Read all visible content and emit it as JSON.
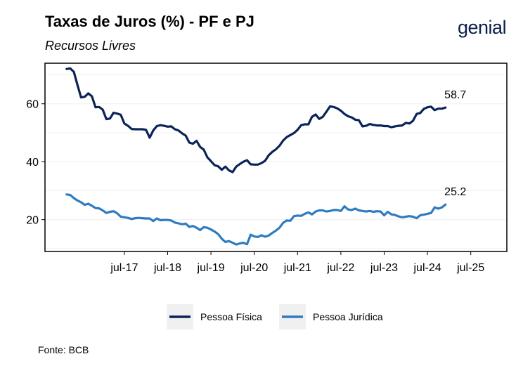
{
  "header": {
    "title": "Taxas de Juros (%) - PF e PJ",
    "subtitle": "Recursos Livres",
    "brand": "genial"
  },
  "footer": {
    "source": "Fonte: BCB"
  },
  "colors": {
    "pessoa_fisica": "#0a2458",
    "pessoa_juridica": "#2e7bc0",
    "grid": "#f0f0f0"
  },
  "chart_data": {
    "type": "line",
    "title": "Taxas de Juros (%) - PF e PJ",
    "subtitle": "Recursos Livres",
    "xlabel": "",
    "ylabel": "",
    "x_start": "2016-03",
    "x_step": "month",
    "xlim_month_index": [
      -6,
      122
    ],
    "ylim": [
      9,
      74
    ],
    "yticks": [
      20,
      40,
      60
    ],
    "xtick_labels": [
      "jul-17",
      "jul-18",
      "jul-19",
      "jul-20",
      "jul-21",
      "jul-22",
      "jul-23",
      "jul-24",
      "jul-25"
    ],
    "xtick_month_index": [
      16,
      28,
      40,
      52,
      64,
      76,
      88,
      100,
      112
    ],
    "grid": true,
    "legend_position": "bottom",
    "series": [
      {
        "name": "Pessoa Física",
        "end_label": "58.7",
        "values": [
          72.0,
          72.2,
          71.0,
          66.5,
          62.2,
          62.4,
          63.6,
          62.6,
          58.8,
          58.9,
          58.0,
          54.7,
          54.9,
          56.9,
          56.6,
          56.2,
          53.2,
          52.4,
          51.3,
          51.2,
          51.2,
          51.2,
          51.0,
          48.3,
          50.8,
          52.3,
          52.6,
          52.4,
          52.1,
          52.2,
          51.2,
          50.8,
          49.8,
          49.0,
          46.6,
          46.2,
          47.2,
          45.1,
          44.2,
          41.5,
          40.2,
          38.8,
          38.4,
          37.2,
          38.3,
          37.0,
          36.4,
          38.3,
          39.2,
          40.0,
          40.5,
          39.1,
          39.0,
          39.0,
          39.5,
          40.3,
          42.2,
          43.4,
          44.3,
          45.5,
          47.3,
          48.5,
          49.2,
          49.9,
          51.0,
          52.6,
          52.9,
          52.9,
          55.5,
          56.3,
          54.8,
          55.5,
          57.3,
          59.1,
          58.9,
          58.4,
          57.6,
          56.5,
          55.7,
          55.3,
          54.5,
          54.3,
          52.2,
          52.4,
          53.0,
          52.7,
          52.5,
          52.5,
          52.3,
          52.3,
          51.9,
          52.2,
          52.4,
          52.5,
          53.4,
          53.2,
          54.1,
          56.5,
          56.8,
          58.2,
          58.8,
          59.0,
          57.8,
          58.3,
          58.3,
          58.7
        ]
      },
      {
        "name": "Pessoa Jurídica",
        "end_label": "25.2",
        "values": [
          28.7,
          28.5,
          27.4,
          26.6,
          26.0,
          25.1,
          25.5,
          24.8,
          24.0,
          23.9,
          23.2,
          22.3,
          22.7,
          22.9,
          22.2,
          21.0,
          20.8,
          20.6,
          20.2,
          20.5,
          20.6,
          20.5,
          20.4,
          20.4,
          19.5,
          20.4,
          19.8,
          19.9,
          19.9,
          19.7,
          19.0,
          18.7,
          18.4,
          18.6,
          17.5,
          17.8,
          17.2,
          16.4,
          17.4,
          17.2,
          16.6,
          15.9,
          15.0,
          13.4,
          12.3,
          12.6,
          12.0,
          11.4,
          11.8,
          12.0,
          11.5,
          14.8,
          14.2,
          14.0,
          14.6,
          14.1,
          14.5,
          15.4,
          16.2,
          17.2,
          18.9,
          19.7,
          19.6,
          21.2,
          21.4,
          21.3,
          22.0,
          22.5,
          21.8,
          22.8,
          23.2,
          23.2,
          22.8,
          23.0,
          23.3,
          23.3,
          23.0,
          24.6,
          23.5,
          23.3,
          23.8,
          23.2,
          23.0,
          22.8,
          23.0,
          22.7,
          22.9,
          22.8,
          21.5,
          22.7,
          21.8,
          21.6,
          21.1,
          20.8,
          21.0,
          21.2,
          21.0,
          20.5,
          21.5,
          21.7,
          22.0,
          22.3,
          24.2,
          23.8,
          24.2,
          25.2
        ]
      }
    ]
  }
}
